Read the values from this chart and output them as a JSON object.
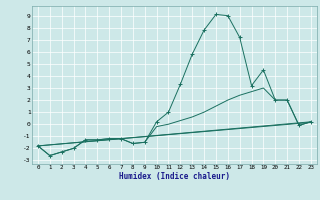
{
  "xlabel": "Humidex (Indice chaleur)",
  "bg_color": "#cde8e8",
  "grid_color": "#b0d4d4",
  "line_color": "#1a7060",
  "xlim": [
    -0.5,
    23.5
  ],
  "ylim": [
    -3.3,
    9.8
  ],
  "xticks": [
    0,
    1,
    2,
    3,
    4,
    5,
    6,
    7,
    8,
    9,
    10,
    11,
    12,
    13,
    14,
    15,
    16,
    17,
    18,
    19,
    20,
    21,
    22,
    23
  ],
  "yticks": [
    -3,
    -2,
    -1,
    0,
    1,
    2,
    3,
    4,
    5,
    6,
    7,
    8,
    9
  ],
  "curve_peaked_x": [
    0,
    1,
    2,
    3,
    4,
    5,
    6,
    7,
    8,
    9,
    10,
    11,
    12,
    13,
    14,
    15,
    16,
    17,
    18,
    19,
    20,
    21,
    22,
    23
  ],
  "curve_peaked_y": [
    -1.8,
    -2.6,
    -2.3,
    -2.0,
    -1.3,
    -1.3,
    -1.2,
    -1.2,
    -1.6,
    -1.5,
    0.2,
    1.0,
    3.3,
    5.8,
    7.8,
    9.1,
    9.0,
    7.2,
    3.2,
    4.5,
    2.0,
    2.0,
    -0.1,
    0.2
  ],
  "curve2_x": [
    0,
    1,
    2,
    3,
    4,
    5,
    6,
    7,
    8,
    9,
    10,
    11,
    12,
    13,
    14,
    15,
    16,
    17,
    18,
    19,
    20,
    21,
    22,
    23
  ],
  "curve2_y": [
    -1.8,
    -2.6,
    -2.3,
    -2.0,
    -1.3,
    -1.3,
    -1.2,
    -1.2,
    -1.6,
    -1.5,
    -0.2,
    0.0,
    0.3,
    0.6,
    1.0,
    1.5,
    2.0,
    2.4,
    2.7,
    3.0,
    2.0,
    2.0,
    -0.1,
    0.2
  ],
  "line1_x": [
    0,
    23
  ],
  "line1_y": [
    -1.8,
    0.2
  ],
  "line2_x": [
    0,
    23
  ],
  "line2_y": [
    -1.8,
    0.15
  ]
}
